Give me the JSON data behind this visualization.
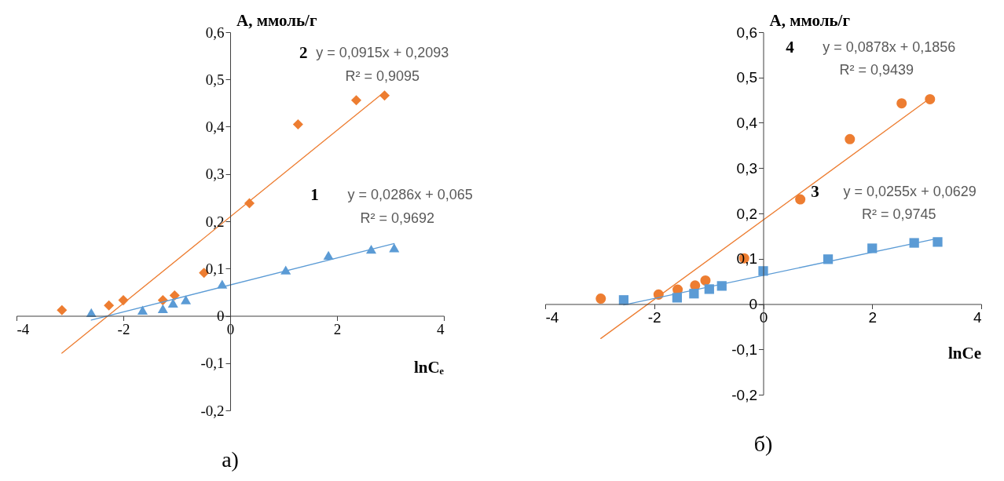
{
  "chart_data": [
    {
      "type": "scatter",
      "title": "а)",
      "xlabel": "lnCₑ",
      "ylabel": "A, ммоль/г",
      "xlim": [
        -4,
        4
      ],
      "ylim": [
        -0.2,
        0.6
      ],
      "xticks": [
        -4,
        -2,
        0,
        2,
        4
      ],
      "yticks": [
        {
          "value": -0.2,
          "label": "-0,2"
        },
        {
          "value": -0.1,
          "label": "-0,1"
        },
        0,
        {
          "value": 0.1,
          "label": "0,1"
        },
        {
          "value": 0.2,
          "label": "0,2"
        },
        {
          "value": 0.3,
          "label": "0,3"
        },
        {
          "value": 0.4,
          "label": "0,4"
        },
        {
          "value": 0.5,
          "label": "0,5"
        },
        {
          "value": 0.6,
          "label": "0,6"
        }
      ],
      "series": [
        {
          "color": "#ed7d31",
          "marker": "diamond",
          "x": [
            -3.15,
            -2.27,
            -2.0,
            -1.26,
            -1.04,
            -0.49,
            0.36,
            1.27,
            2.36,
            2.89
          ],
          "values": [
            0.012,
            0.022,
            0.033,
            0.033,
            0.043,
            0.091,
            0.238,
            0.405,
            0.456,
            0.466
          ]
        },
        {
          "color": "#5b9bd5",
          "marker": "triangle",
          "x": [
            -2.6,
            -1.64,
            -1.26,
            -1.07,
            -0.83,
            -0.15,
            1.04,
            1.84,
            2.64,
            3.07
          ],
          "values": [
            0.007,
            0.012,
            0.015,
            0.027,
            0.034,
            0.067,
            0.097,
            0.128,
            0.141,
            0.144
          ]
        },
        {
          "type": "line",
          "color": "#ed7d31",
          "marker": "none",
          "x": [
            -3.15,
            2.89
          ],
          "values": [
            -0.079,
            0.474
          ]
        },
        {
          "type": "line",
          "color": "#5b9bd5",
          "marker": "none",
          "x": [
            -2.6,
            3.07
          ],
          "values": [
            -0.009,
            0.153
          ]
        }
      ],
      "annotations": [
        "2",
        "y = 0,0915x + 0,2093",
        "R² = 0,9095",
        "1",
        "y = 0,0286x + 0,065",
        "R² = 0,9692"
      ]
    },
    {
      "type": "scatter",
      "title": "б)",
      "xlabel": "lnCe",
      "ylabel": "A, ммоль/г",
      "xlim": [
        -4,
        4
      ],
      "ylim": [
        -0.2,
        0.6
      ],
      "xticks": [
        -4,
        -2,
        0,
        2,
        4
      ],
      "yticks": [
        {
          "value": -0.2,
          "label": "-0,2"
        },
        {
          "value": -0.1,
          "label": "-0,1"
        },
        0,
        {
          "value": 0.1,
          "label": "0,1"
        },
        {
          "value": 0.2,
          "label": "0,2"
        },
        {
          "value": 0.3,
          "label": "0,3"
        },
        {
          "value": 0.4,
          "label": "0,4"
        },
        {
          "value": 0.5,
          "label": "0,5"
        },
        {
          "value": 0.6,
          "label": "0,6"
        }
      ],
      "series": [
        {
          "color": "#ed7d31",
          "marker": "circle",
          "x": [
            -2.98,
            -1.92,
            -1.57,
            -1.25,
            -1.06,
            -0.35,
            0.68,
            1.59,
            2.54,
            3.06
          ],
          "values": [
            0.012,
            0.021,
            0.032,
            0.041,
            0.052,
            0.101,
            0.231,
            0.364,
            0.443,
            0.452
          ]
        },
        {
          "color": "#5b9bd5",
          "marker": "square",
          "x": [
            -2.56,
            -1.58,
            -1.27,
            -0.99,
            -0.76,
            0,
            1.19,
            2.0,
            2.77,
            3.2
          ],
          "values": [
            0.009,
            0.014,
            0.023,
            0.033,
            0.04,
            0.073,
            0.099,
            0.123,
            0.135,
            0.137
          ]
        },
        {
          "type": "line",
          "color": "#ed7d31",
          "marker": "none",
          "x": [
            -2.98,
            3.06
          ],
          "values": [
            -0.076,
            0.454
          ]
        },
        {
          "type": "line",
          "color": "#5b9bd5",
          "marker": "none",
          "x": [
            -2.56,
            3.2
          ],
          "values": [
            -0.002,
            0.145
          ]
        }
      ],
      "annotations": [
        "4",
        "y = 0,0878x + 0,1856",
        "R² = 0,9439",
        "3",
        "y = 0,0255x + 0,0629",
        "R² = 0,9745"
      ]
    }
  ]
}
